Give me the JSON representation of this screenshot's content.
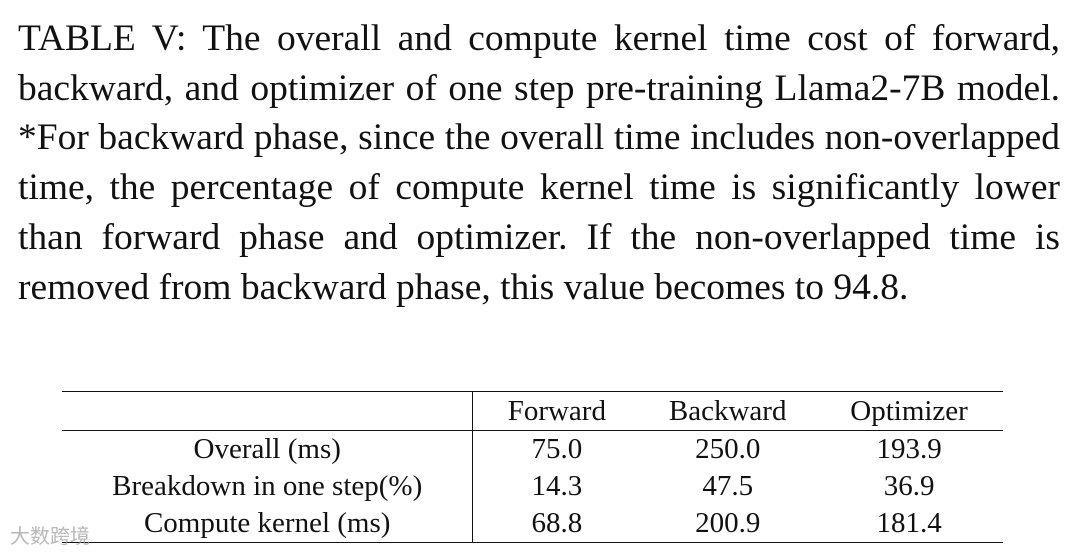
{
  "caption": "TABLE V: The overall and compute kernel time cost of forward, backward, and optimizer of one step pre-training Llama2-7B model. *For backward phase, since the overall time includes non-overlapped time, the percentage of compute kernel time is significantly lower than forward phase and optimizer. If the non-overlapped time is removed from backward phase, this value becomes to 94.8.",
  "table": {
    "header": [
      "",
      "Forward",
      "Backward",
      "Optimizer"
    ],
    "rows": [
      [
        "Overall (ms)",
        "75.0",
        "250.0",
        "193.9"
      ],
      [
        "Breakdown in one step(%)",
        "14.3",
        "47.5",
        "36.9"
      ],
      [
        "Compute kernel (ms)",
        "68.8",
        "200.9",
        "181.4"
      ]
    ]
  },
  "watermark": "大数跨境"
}
